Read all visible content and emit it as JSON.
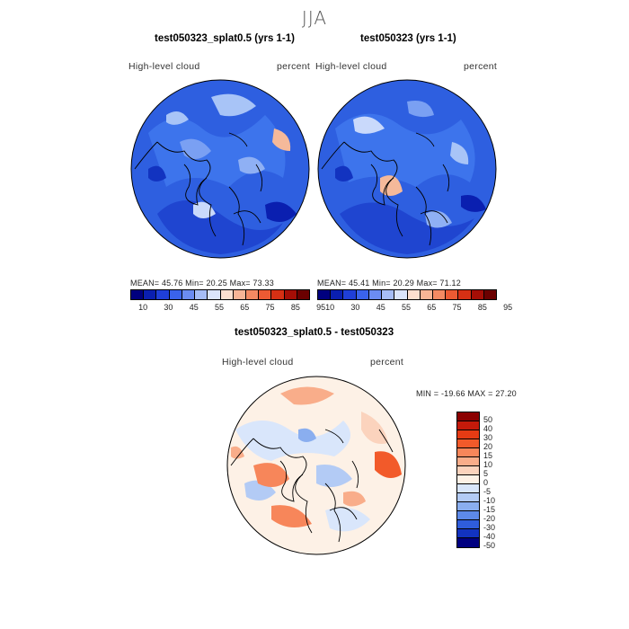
{
  "season": "JJA",
  "panels": [
    {
      "title": "test050323_splat0.5 (yrs 1-1)",
      "variable": "High-level cloud",
      "units": "percent",
      "stats": "MEAN=  45.76   Min=  20.25   Max=  73.33"
    },
    {
      "title": "test050323 (yrs 1-1)",
      "variable": "High-level cloud",
      "units": "percent",
      "stats": "MEAN=  45.41   Min=  20.29   Max=  71.12"
    }
  ],
  "diff_panel": {
    "title": "test050323_splat0.5 - test050323",
    "variable": "High-level cloud",
    "units": "percent",
    "minmax": "MIN = -19.66  MAX =   27.20"
  },
  "colorbar_abs": {
    "colors": [
      "#00007f",
      "#0a1fb0",
      "#1f3fd8",
      "#3a63ec",
      "#6b8cf2",
      "#a6bdf6",
      "#dbe5fb",
      "#fde0cf",
      "#f8b596",
      "#f48a63",
      "#ec5a33",
      "#d63014",
      "#a50e06",
      "#6b0000"
    ],
    "ticks": [
      "10",
      "30",
      "45",
      "55",
      "65",
      "75",
      "85",
      "95"
    ]
  },
  "colorbar_diff": {
    "colors": [
      "#8b0000",
      "#c41a0a",
      "#e63b14",
      "#f25a2a",
      "#f7865a",
      "#f9ad8a",
      "#fbd3bd",
      "#fdf1e6",
      "#d9e6fb",
      "#b3cbf5",
      "#8aaeef",
      "#5d89e8",
      "#2f5ddb",
      "#1233c0",
      "#000080"
    ],
    "ticks": [
      "50",
      "40",
      "30",
      "20",
      "15",
      "10",
      "5",
      "0",
      "-5",
      "-10",
      "-15",
      "-20",
      "-30",
      "-40",
      "-50"
    ]
  }
}
